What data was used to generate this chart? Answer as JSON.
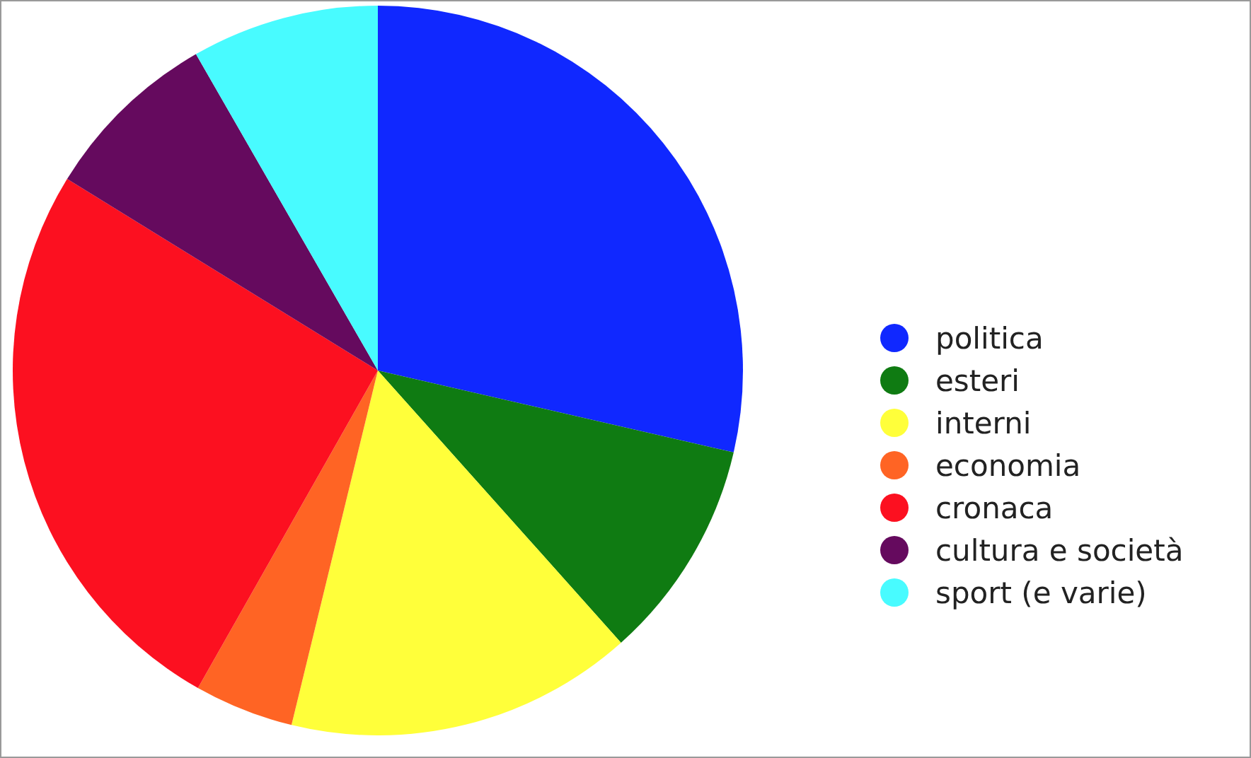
{
  "chart_data": {
    "type": "pie",
    "categories": [
      "politica",
      "esteri",
      "interni",
      "economia",
      "cronaca",
      "cultura e società",
      "sport (e varie)"
    ],
    "values": [
      28.6,
      9.8,
      15.4,
      4.4,
      25.6,
      7.9,
      8.3
    ],
    "colors": [
      "#1028ff",
      "#0f7b12",
      "#ffff3a",
      "#ff6424",
      "#fc1020",
      "#650a5e",
      "#48fbff"
    ],
    "legend": "right"
  }
}
